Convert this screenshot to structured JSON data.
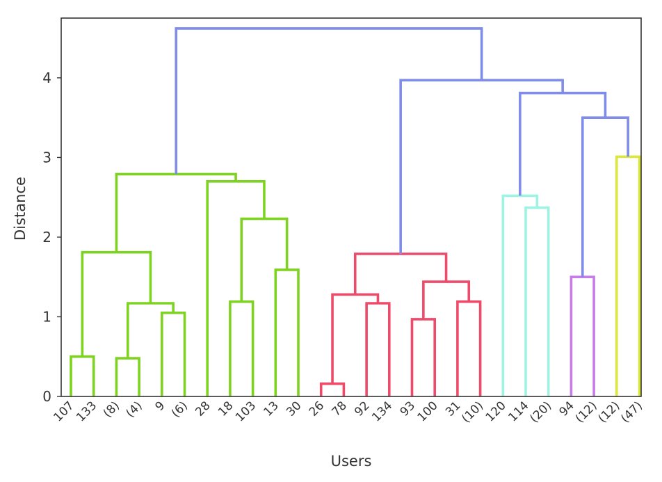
{
  "chart_data": {
    "type": "dendrogram",
    "title": "",
    "xlabel": "Users",
    "ylabel": "Distance",
    "ylim": [
      0,
      4.75
    ],
    "yticks": [
      0,
      1,
      2,
      3,
      4
    ],
    "grid": false,
    "leaves": [
      "107",
      "133",
      "(8)",
      "(4)",
      "9",
      "(6)",
      "28",
      "18",
      "103",
      "13",
      "30",
      "26",
      "78",
      "92",
      "134",
      "93",
      "100",
      "31",
      "(10)",
      "120",
      "114",
      "(20)",
      "94",
      "(12)",
      "(12)",
      "(47)"
    ],
    "links": [
      {
        "left": "leaf:0",
        "right": "leaf:1",
        "height": 0.5,
        "color": "#7ed321"
      },
      {
        "left": "leaf:2",
        "right": "leaf:3",
        "height": 0.48,
        "color": "#7ed321"
      },
      {
        "left": "leaf:4",
        "right": "leaf:5",
        "height": 1.05,
        "color": "#7ed321"
      },
      {
        "left": "link:1",
        "right": "link:2",
        "height": 1.17,
        "color": "#7ed321"
      },
      {
        "left": "link:0",
        "right": "link:3",
        "height": 1.81,
        "color": "#7ed321"
      },
      {
        "left": "leaf:7",
        "right": "leaf:8",
        "height": 1.19,
        "color": "#7ed321"
      },
      {
        "left": "leaf:9",
        "right": "leaf:10",
        "height": 1.59,
        "color": "#7ed321"
      },
      {
        "left": "link:5",
        "right": "link:6",
        "height": 2.23,
        "color": "#7ed321"
      },
      {
        "left": "leaf:6",
        "right": "link:7",
        "height": 2.7,
        "color": "#7ed321"
      },
      {
        "left": "link:4",
        "right": "link:8",
        "height": 2.79,
        "color": "#7ed321"
      },
      {
        "left": "leaf:11",
        "right": "leaf:12",
        "height": 0.16,
        "color": "#ee4a6a"
      },
      {
        "left": "leaf:13",
        "right": "leaf:14",
        "height": 1.17,
        "color": "#ee4a6a"
      },
      {
        "left": "link:10",
        "right": "link:11",
        "height": 1.28,
        "color": "#ee4a6a"
      },
      {
        "left": "leaf:15",
        "right": "leaf:16",
        "height": 0.97,
        "color": "#ee4a6a"
      },
      {
        "left": "leaf:17",
        "right": "leaf:18",
        "height": 1.19,
        "color": "#ee4a6a"
      },
      {
        "left": "link:13",
        "right": "link:14",
        "height": 1.44,
        "color": "#ee4a6a"
      },
      {
        "left": "link:12",
        "right": "link:15",
        "height": 1.79,
        "color": "#ee4a6a"
      },
      {
        "left": "leaf:20",
        "right": "leaf:21",
        "height": 2.37,
        "color": "#9ef3e3"
      },
      {
        "left": "leaf:19",
        "right": "link:17",
        "height": 2.52,
        "color": "#9ef3e3"
      },
      {
        "left": "leaf:22",
        "right": "leaf:23",
        "height": 1.5,
        "color": "#c77de8"
      },
      {
        "left": "leaf:24",
        "right": "leaf:25",
        "height": 3.01,
        "color": "#dce839"
      },
      {
        "left": "link:19",
        "right": "link:20",
        "height": 3.5,
        "color": "#7f8ce9"
      },
      {
        "left": "link:18",
        "right": "link:21",
        "height": 3.81,
        "color": "#7f8ce9"
      },
      {
        "left": "link:16",
        "right": "link:22",
        "height": 3.97,
        "color": "#7f8ce9"
      },
      {
        "left": "link:9",
        "right": "link:23",
        "height": 4.62,
        "color": "#7f8ce9"
      }
    ]
  }
}
